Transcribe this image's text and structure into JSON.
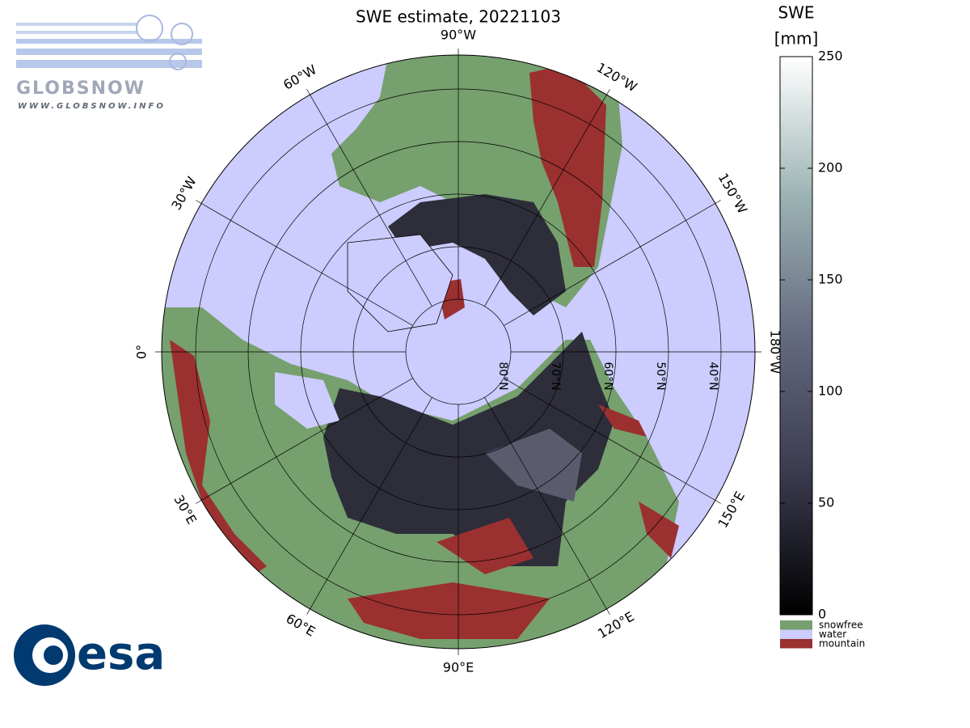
{
  "header": {
    "title": "SWE estimate, 20221103"
  },
  "logos": {
    "globsnow": "GLOBSNOW",
    "globsnow_url": "WWW.GLOBSNOW.INFO",
    "esa": "esa"
  },
  "colorbar": {
    "label": [
      "SWE",
      "[mm]"
    ],
    "lim": [
      0,
      250
    ],
    "ticks": [
      0,
      50,
      100,
      150,
      200,
      250
    ]
  },
  "legend": [
    {
      "label": "snowfree",
      "color": "#76a06e"
    },
    {
      "label": "water",
      "color": "#ccccff"
    },
    {
      "label": "mountain",
      "color": "#9b3030"
    }
  ],
  "map": {
    "meridians": [
      {
        "lon": -90,
        "label": "90°W"
      },
      {
        "lon": -120,
        "label": "120°W"
      },
      {
        "lon": -150,
        "label": "150°W"
      },
      {
        "lon": -180,
        "label": "180°W"
      },
      {
        "lon": 150,
        "label": "150°E"
      },
      {
        "lon": 120,
        "label": "120°E"
      },
      {
        "lon": 90,
        "label": "90°E"
      },
      {
        "lon": 60,
        "label": "60°E"
      },
      {
        "lon": 30,
        "label": "30°E"
      },
      {
        "lon": 0,
        "label": "0°"
      },
      {
        "lon": -30,
        "label": "30°W"
      },
      {
        "lon": -60,
        "label": "60°W"
      }
    ],
    "parallels": [
      {
        "lat": 80,
        "label": "80°N"
      },
      {
        "lat": 70,
        "label": "70°N"
      },
      {
        "lat": 60,
        "label": "60°N"
      },
      {
        "lat": 50,
        "label": "50°N"
      },
      {
        "lat": 40,
        "label": "40°N"
      }
    ]
  }
}
